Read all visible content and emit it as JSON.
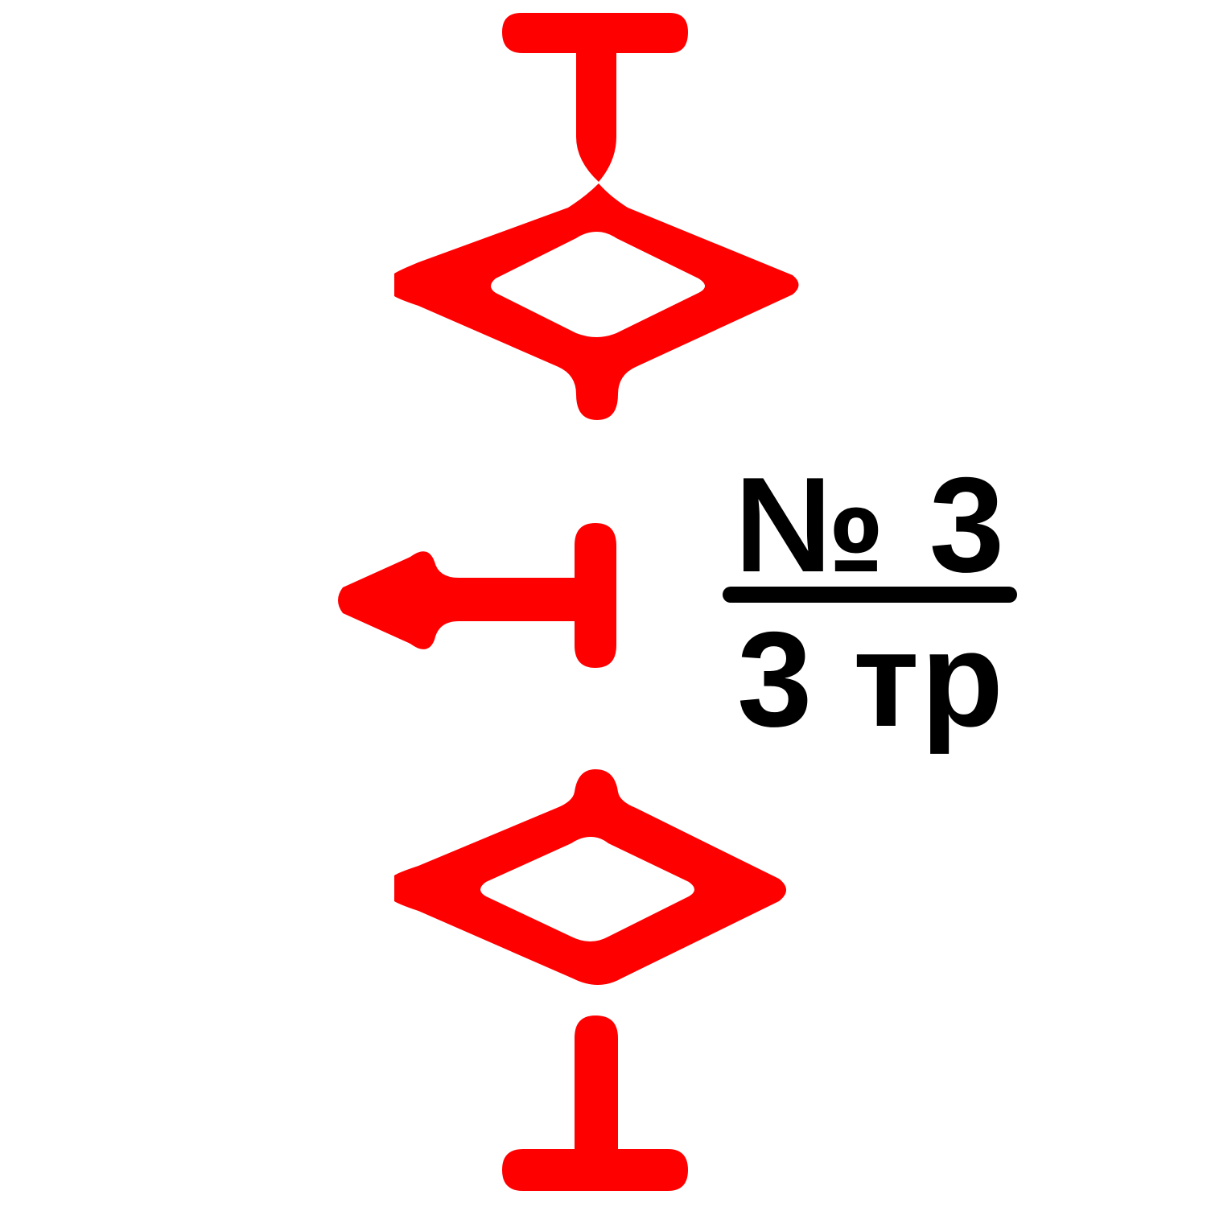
{
  "colors": {
    "symbol": "#ff0000",
    "text": "#000000",
    "background": "#ffffff"
  },
  "label": {
    "number": "№ 3",
    "type": "3 тр"
  }
}
